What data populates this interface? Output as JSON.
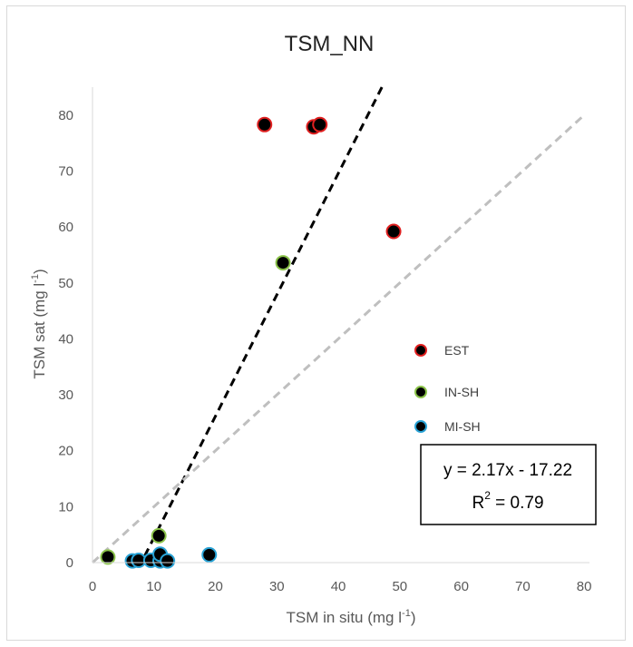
{
  "chart_data": {
    "type": "scatter",
    "title": "TSM_NN",
    "xlabel": "TSM in situ (mg l",
    "xlabel_sup": "-1",
    "xlabel_end": ")",
    "ylabel": "TSM sat (mg l",
    "ylabel_sup": "-1",
    "ylabel_end": ")",
    "xlim": [
      0,
      85
    ],
    "ylim": [
      0,
      85
    ],
    "xticks": [
      "0",
      "10",
      "20",
      "30",
      "40",
      "50",
      "60",
      "70",
      "80"
    ],
    "yticks": [
      "0",
      "10",
      "20",
      "30",
      "40",
      "50",
      "60",
      "70",
      "80"
    ],
    "grid": false,
    "legend_position": "right",
    "series": [
      {
        "name": "EST",
        "fill": "#000000",
        "edge": "#e02020",
        "points": [
          [
            28,
            78.3
          ],
          [
            36,
            77.9
          ],
          [
            37,
            78.3
          ],
          [
            49,
            59.2
          ]
        ]
      },
      {
        "name": "IN-SH",
        "fill": "#000000",
        "edge": "#8bc34a",
        "points": [
          [
            2.5,
            1.0
          ],
          [
            10.8,
            4.8
          ],
          [
            31,
            53.6
          ]
        ]
      },
      {
        "name": "MI-SH",
        "fill": "#000000",
        "edge": "#29a3d6",
        "points": [
          [
            6.5,
            0.3
          ],
          [
            7.5,
            0.4
          ],
          [
            9.5,
            0.4
          ],
          [
            11,
            0.3
          ],
          [
            11,
            1.5
          ],
          [
            12.2,
            0.3
          ],
          [
            19,
            1.4
          ]
        ]
      }
    ],
    "lines": [
      {
        "kind": "regression",
        "color": "#000000",
        "x0": 8.5,
        "y0": 1.2,
        "x1": 47.1,
        "y1": 85
      },
      {
        "kind": "one-to-one",
        "color": "#bfbfbf",
        "x0": 0,
        "y0": 0,
        "x1": 80,
        "y1": 80
      }
    ],
    "annotation": {
      "line1": "y = 2.17x - 17.22",
      "r_label": "R",
      "r_sup": "2",
      "r_value": " = 0.79"
    }
  }
}
